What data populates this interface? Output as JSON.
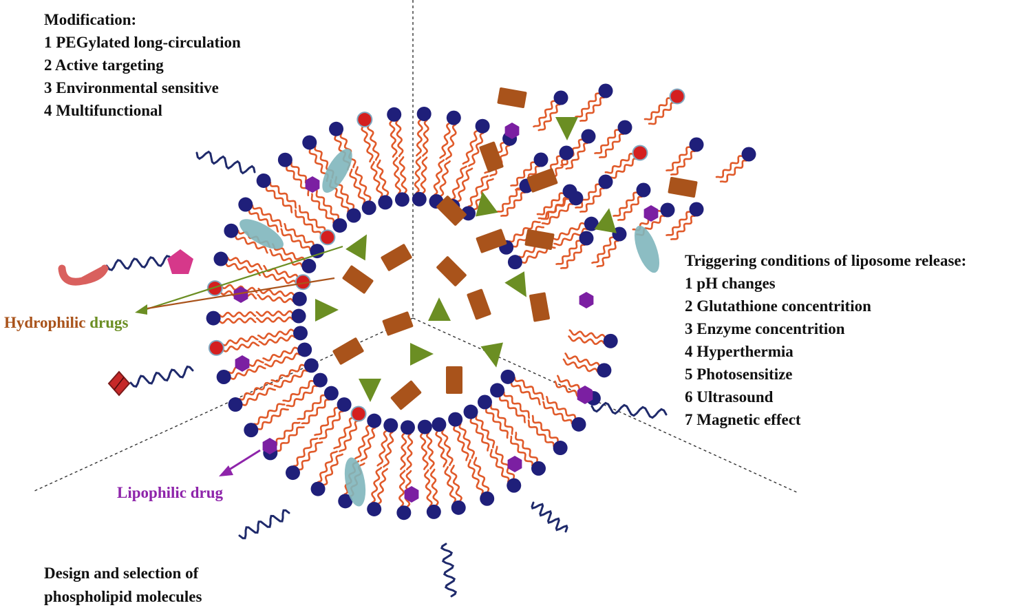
{
  "modification": {
    "title": "Modification:",
    "items": [
      "1 PEGylated long-circulation",
      "2 Active targeting",
      "3 Environmental sensitive",
      "4 Multifunctional"
    ]
  },
  "triggers": {
    "title": "Triggering conditions of liposome release:",
    "items": [
      "1 pH changes",
      "2 Glutathione concentrition",
      "3 Enzyme concentrition",
      "4 Hyperthermia",
      "5 Photosensitize",
      "6 Ultrasound",
      "7 Magnetic effect"
    ]
  },
  "phospholipid": {
    "line1": "Design and selection of",
    "line2": "phospholipid molecules"
  },
  "labels": {
    "hydrophilic": "Hydrophilic",
    "drugs": "drugs",
    "lipophilic_drug": "Lipophilic drug"
  },
  "colors": {
    "head": "#1f1f7a",
    "tail": "#e05a2a",
    "red_head": "#d41f1f",
    "brown_drug": "#a9531b",
    "green_drug": "#6b8e23",
    "purple_drug": "#7b1fa2",
    "teal_protein": "#7fb6bd",
    "peg": "#1f2a6b",
    "antibody": "#d9605e",
    "ligand": "#d6388a",
    "label_brown": "#a9531b",
    "label_green": "#6b8e23",
    "label_purple": "#8e24aa"
  }
}
